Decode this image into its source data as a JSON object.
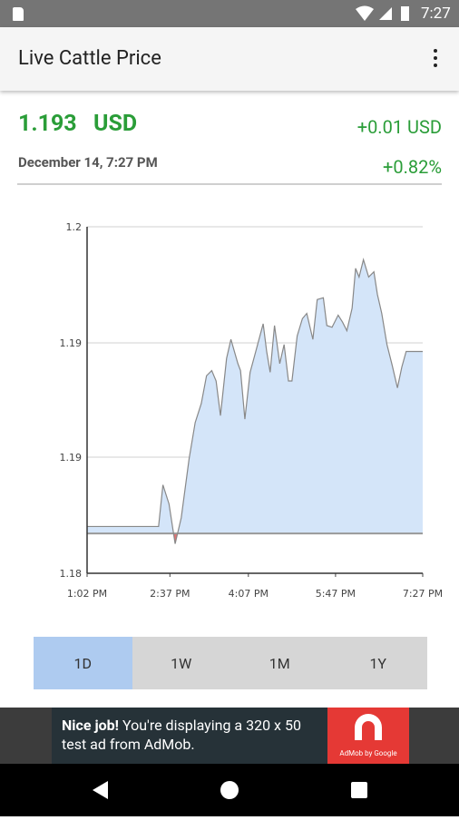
{
  "status_bar": {
    "time": "7:27"
  },
  "header": {
    "title": "Live Cattle Price"
  },
  "quote": {
    "price": "1.193",
    "currency": "USD",
    "change": "+0.01 USD",
    "date": "December 14, 7:27 PM",
    "change_percent": "+0.82%"
  },
  "tabs": [
    "1D",
    "1W",
    "1M",
    "1Y"
  ],
  "ad": {
    "headline": "Nice job!",
    "text": "You're displaying a 320 x 50 test ad from AdMob.",
    "logo": "AdMob by Google"
  },
  "chart_data": {
    "type": "area",
    "x": [
      782,
      864,
      869,
      876,
      883,
      890,
      899,
      906,
      913,
      919,
      925,
      930,
      935,
      942,
      947,
      955,
      958,
      963,
      969,
      976,
      984,
      988,
      992,
      997,
      1003,
      1008,
      1013,
      1017,
      1023,
      1029,
      1034,
      1041,
      1046,
      1053,
      1057,
      1063,
      1070,
      1075,
      1080,
      1086,
      1090,
      1094,
      1099,
      1105,
      1111,
      1115,
      1120,
      1126,
      1132,
      1138,
      1143,
      1148,
      1167
    ],
    "values": [
      1.1827,
      1.1827,
      1.1851,
      1.184,
      1.1817,
      1.1832,
      1.1866,
      1.1887,
      1.1898,
      1.1914,
      1.1917,
      1.1911,
      1.1891,
      1.1924,
      1.1935,
      1.1921,
      1.1917,
      1.1889,
      1.1916,
      1.1929,
      1.1944,
      1.1928,
      1.1916,
      1.1943,
      1.1921,
      1.1932,
      1.1911,
      1.1911,
      1.1937,
      1.1947,
      1.195,
      1.1935,
      1.1958,
      1.1959,
      1.1943,
      1.1942,
      1.1949,
      1.1945,
      1.194,
      1.1953,
      1.1976,
      1.1971,
      1.1981,
      1.1971,
      1.1974,
      1.1961,
      1.195,
      1.1932,
      1.192,
      1.1907,
      1.1919,
      1.1928,
      1.1928
    ],
    "baseline": 1.1823,
    "color": "#888888",
    "fill_above": "#d4e5f9",
    "fill_below": "#e57373",
    "xlim": [
      782,
      1167
    ],
    "xticks": [
      {
        "value": 782,
        "label": "1:02 PM"
      },
      {
        "value": 877,
        "label": "2:37 PM"
      },
      {
        "value": 967,
        "label": "4:07 PM"
      },
      {
        "value": 1067,
        "label": "5:47 PM"
      },
      {
        "value": 1167,
        "label": "7:27 PM"
      }
    ],
    "ylim": [
      1.18,
      1.2
    ],
    "yticks": [
      {
        "value": 1.18,
        "label": "1.18"
      },
      {
        "value": 1.1867,
        "label": "1.19"
      },
      {
        "value": 1.1933,
        "label": "1.19"
      },
      {
        "value": 1.2,
        "label": "1.2"
      }
    ],
    "grid": true
  }
}
